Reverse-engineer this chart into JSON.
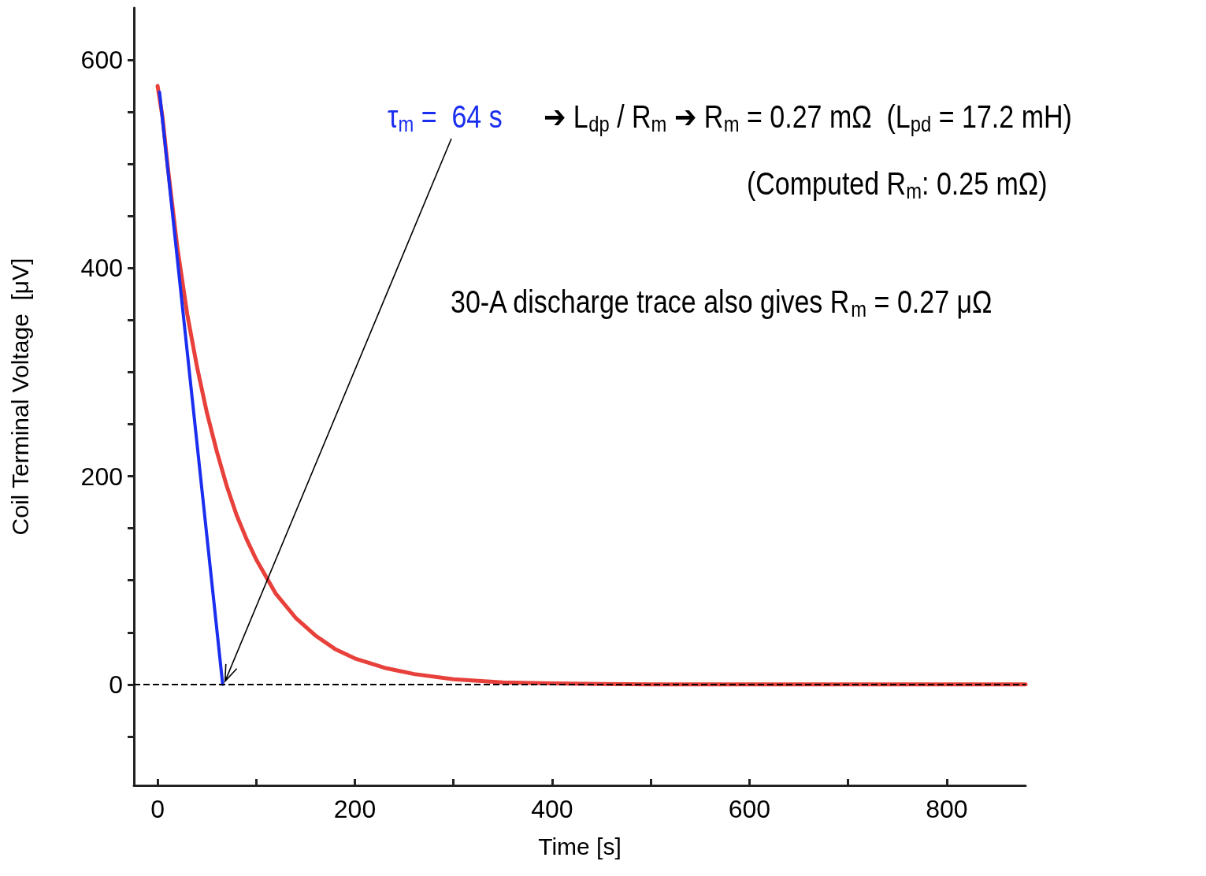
{
  "chart_data": {
    "type": "line",
    "xlabel": "Time [s]",
    "ylabel": "Coil Terminal Voltage  [μV]",
    "xlim": [
      -24,
      880
    ],
    "ylim": [
      -97,
      650
    ],
    "xticks": [
      0,
      {
        "value": 100,
        "label": null
      },
      200,
      {
        "value": 300,
        "label": null
      },
      400,
      {
        "value": 500,
        "label": null
      },
      600,
      {
        "value": 700,
        "label": null
      },
      800
    ],
    "yticks": [
      {
        "value": -50,
        "label": null
      },
      0,
      {
        "value": 50,
        "label": null
      },
      {
        "value": 100,
        "label": null
      },
      {
        "value": 150,
        "label": null
      },
      200,
      {
        "value": 250,
        "label": null
      },
      {
        "value": 300,
        "label": null
      },
      {
        "value": 350,
        "label": null
      },
      400,
      {
        "value": 450,
        "label": null
      },
      {
        "value": 500,
        "label": null
      },
      {
        "value": 550,
        "label": null
      },
      600
    ],
    "series": [
      {
        "color": "#e8403a",
        "x": [
          0,
          5,
          10,
          15,
          20,
          30,
          40,
          50,
          60,
          70,
          80,
          90,
          100,
          120,
          140,
          160,
          180,
          200,
          230,
          260,
          300,
          350,
          400,
          500,
          600,
          700,
          800,
          880
        ],
        "values": [
          575,
          545,
          500,
          460,
          420,
          356,
          305,
          261,
          224,
          191,
          163,
          140,
          120,
          87,
          64,
          47,
          34,
          25,
          16,
          10,
          5,
          2,
          1,
          0,
          0,
          0,
          0,
          0
        ]
      },
      {
        "color": "#1a2ef0",
        "x": [
          2,
          66
        ],
        "values": [
          569,
          0
        ]
      }
    ],
    "ref_lines": [
      {
        "axis": "y",
        "value": 0,
        "color": "#000000",
        "line_style": "dashed"
      }
    ],
    "annotations": [
      {
        "text": "τ$_{m}$ =  64 s",
        "x": 66,
        "y": 0
      },
      "➔ L$_{dp}$ / R$_{m}$ ➔ R$_{m}$ = 0.27 mΩ  (L$_{pd}$ = 17.2 mH)",
      "(Computed R$_{m}$: 0.25 mΩ)",
      "30-A discharge trace also gives R$_{m}$ = 0.27 μΩ"
    ]
  }
}
